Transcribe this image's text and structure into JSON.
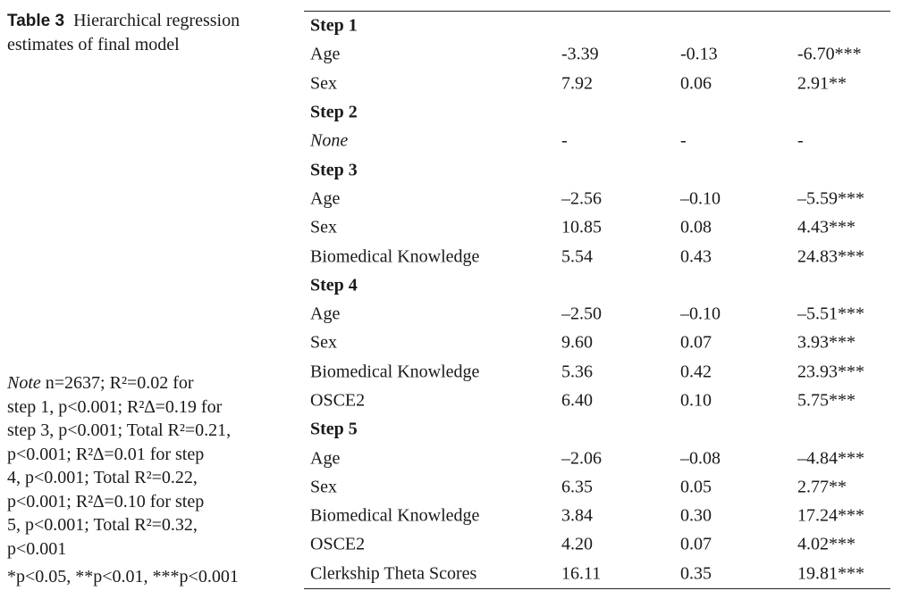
{
  "caption": {
    "label": "Table 3",
    "title": "Hierarchical regression estimates of final model"
  },
  "note": {
    "lead": "Note",
    "lines": [
      "n=2637; R²=0.02 for",
      "step 1, p<0.001; R²∆=0.19 for",
      "step 3, p<0.001; Total R²=0.21,",
      "p<0.001; R²∆=0.01 for step",
      "4, p<0.001; Total R²=0.22,",
      "p<0.001; R²∆=0.10 for step",
      "5, p<0.001; Total R²=0.32,",
      "p<0.001"
    ]
  },
  "significance": "*p<0.05, **p<0.01, ***p<0.001",
  "table": {
    "rows": [
      {
        "type": "step",
        "label": "Step 1",
        "b": "",
        "beta": "",
        "t": ""
      },
      {
        "type": "data",
        "label": "Age",
        "b": "-3.39",
        "beta": "-0.13",
        "t": "-6.70***"
      },
      {
        "type": "data",
        "label": "Sex",
        "b": "7.92",
        "beta": "0.06",
        "t": "2.91**"
      },
      {
        "type": "step",
        "label": "Step 2",
        "b": "",
        "beta": "",
        "t": ""
      },
      {
        "type": "italic",
        "label": "None",
        "b": "-",
        "beta": "-",
        "t": "-"
      },
      {
        "type": "step",
        "label": "Step 3",
        "b": "",
        "beta": "",
        "t": ""
      },
      {
        "type": "data",
        "label": "Age",
        "b": "–2.56",
        "beta": "–0.10",
        "t": "–5.59***"
      },
      {
        "type": "data",
        "label": "Sex",
        "b": "10.85",
        "beta": "0.08",
        "t": "4.43***"
      },
      {
        "type": "data",
        "label": "Biomedical Knowledge",
        "b": "5.54",
        "beta": "0.43",
        "t": "24.83***"
      },
      {
        "type": "step",
        "label": "Step 4",
        "b": "",
        "beta": "",
        "t": ""
      },
      {
        "type": "data",
        "label": "Age",
        "b": "–2.50",
        "beta": "–0.10",
        "t": "–5.51***"
      },
      {
        "type": "data",
        "label": "Sex",
        "b": "9.60",
        "beta": "0.07",
        "t": "3.93***"
      },
      {
        "type": "data",
        "label": "Biomedical Knowledge",
        "b": "5.36",
        "beta": "0.42",
        "t": "23.93***"
      },
      {
        "type": "data",
        "label": "OSCE2",
        "b": "6.40",
        "beta": "0.10",
        "t": "5.75***"
      },
      {
        "type": "step",
        "label": "Step 5",
        "b": "",
        "beta": "",
        "t": ""
      },
      {
        "type": "data",
        "label": "Age",
        "b": "–2.06",
        "beta": "–0.08",
        "t": "–4.84***"
      },
      {
        "type": "data",
        "label": "Sex",
        "b": "6.35",
        "beta": "0.05",
        "t": "2.77**"
      },
      {
        "type": "data",
        "label": "Biomedical Knowledge",
        "b": "3.84",
        "beta": "0.30",
        "t": "17.24***"
      },
      {
        "type": "data",
        "label": "OSCE2",
        "b": "4.20",
        "beta": "0.07",
        "t": "4.02***"
      },
      {
        "type": "data",
        "label": "Clerkship Theta Scores",
        "b": "16.11",
        "beta": "0.35",
        "t": "19.81***"
      }
    ]
  }
}
